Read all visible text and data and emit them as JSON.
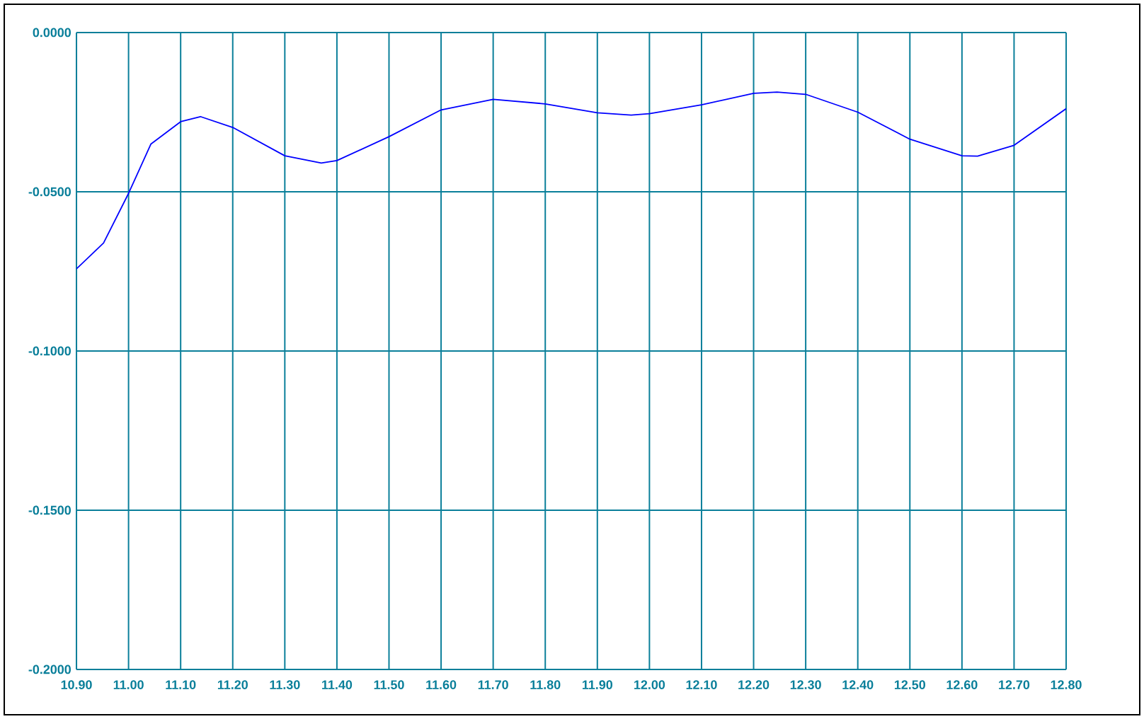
{
  "chart_data": {
    "type": "line",
    "xlim": [
      10.9,
      12.8
    ],
    "ylim": [
      -0.2,
      0
    ],
    "xticks": [
      {
        "value": 10.9,
        "label": "10.90"
      },
      {
        "value": 11.0,
        "label": "11.00"
      },
      {
        "value": 11.1,
        "label": "11.10"
      },
      {
        "value": 11.2,
        "label": "11.20"
      },
      {
        "value": 11.3,
        "label": "11.30"
      },
      {
        "value": 11.4,
        "label": "11.40"
      },
      {
        "value": 11.5,
        "label": "11.50"
      },
      {
        "value": 11.6,
        "label": "11.60"
      },
      {
        "value": 11.7,
        "label": "11.70"
      },
      {
        "value": 11.8,
        "label": "11.80"
      },
      {
        "value": 11.9,
        "label": "11.90"
      },
      {
        "value": 12.0,
        "label": "12.00"
      },
      {
        "value": 12.1,
        "label": "12.10"
      },
      {
        "value": 12.2,
        "label": "12.20"
      },
      {
        "value": 12.3,
        "label": "12.30"
      },
      {
        "value": 12.4,
        "label": "12.40"
      },
      {
        "value": 12.5,
        "label": "12.50"
      },
      {
        "value": 12.6,
        "label": "12.60"
      },
      {
        "value": 12.7,
        "label": "12.70"
      },
      {
        "value": 12.8,
        "label": "12.80"
      }
    ],
    "yticks": [
      {
        "value": -0.2,
        "label": "-0.2000"
      },
      {
        "value": -0.15,
        "label": "-0.1500"
      },
      {
        "value": -0.1,
        "label": "-0.1000"
      },
      {
        "value": -0.05,
        "label": "-0.0500"
      },
      {
        "value": 0,
        "label": "0.0000"
      }
    ],
    "grid": true,
    "marker": "none",
    "line_style": "solid",
    "series": [
      {
        "color": "#0000ff",
        "x": [
          10.9,
          10.952,
          11.0,
          11.043,
          11.1,
          11.138,
          11.2,
          11.3,
          11.37,
          11.4,
          11.5,
          11.6,
          11.7,
          11.8,
          11.9,
          11.965,
          12.0,
          12.1,
          12.2,
          12.245,
          12.3,
          12.4,
          12.5,
          12.6,
          12.63,
          12.7,
          12.8
        ],
        "values": [
          -0.0742,
          -0.0661,
          -0.0505,
          -0.035,
          -0.028,
          -0.0264,
          -0.0298,
          -0.0387,
          -0.041,
          -0.0402,
          -0.0327,
          -0.0243,
          -0.021,
          -0.0224,
          -0.0252,
          -0.0259,
          -0.0255,
          -0.0227,
          -0.0191,
          -0.0187,
          -0.0194,
          -0.025,
          -0.0335,
          -0.0387,
          -0.0388,
          -0.0354,
          -0.0239
        ]
      }
    ]
  }
}
